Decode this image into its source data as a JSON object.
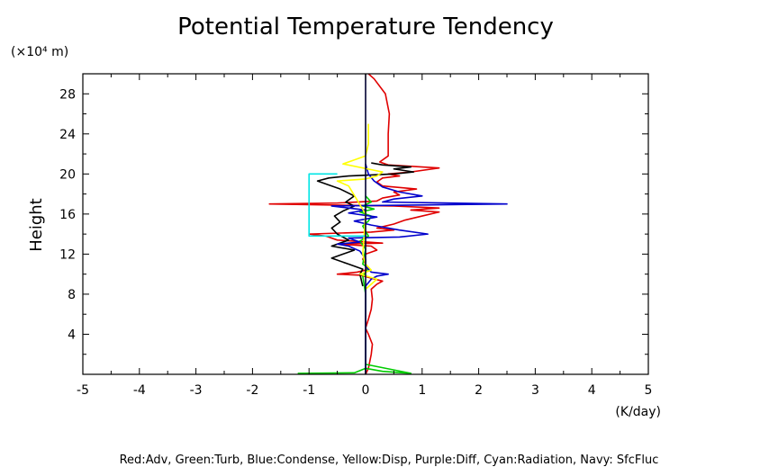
{
  "chart_data": {
    "type": "line",
    "title": "Potential Temperature Tendency",
    "ylabel": "Height",
    "yunit_label": "(×10⁴ m)",
    "xunit_label": "(K/day)",
    "xlim": [
      -5,
      5
    ],
    "ylim": [
      0,
      30
    ],
    "x_ticks": [
      "-5",
      "-4",
      "-3",
      "-2",
      "-1",
      "0",
      "1",
      "2",
      "3",
      "4",
      "5"
    ],
    "y_ticks": [
      "4",
      "8",
      "12",
      "16",
      "20",
      "24",
      "28"
    ],
    "grid": false,
    "legend_note": "Red:Adv, Green:Turb, Blue:Condense, Yellow:Disp, Purple:Diff, Cyan:Radiation, Navy: SfcFluc",
    "series": [
      {
        "name": "Red",
        "color": "#e00000",
        "points": [
          [
            0.0,
            0.0
          ],
          [
            0.05,
            0.6
          ],
          [
            0.1,
            2.0
          ],
          [
            0.12,
            3.0
          ],
          [
            0.05,
            4.0
          ],
          [
            0.0,
            4.6
          ],
          [
            0.05,
            5.5
          ],
          [
            0.1,
            6.5
          ],
          [
            0.12,
            7.5
          ],
          [
            0.1,
            8.5
          ],
          [
            0.2,
            9.0
          ],
          [
            0.3,
            9.3
          ],
          [
            0.1,
            9.6
          ],
          [
            -0.1,
            9.9
          ],
          [
            -0.5,
            10.0
          ],
          [
            -0.15,
            10.2
          ],
          [
            0.0,
            10.4
          ],
          [
            0.05,
            10.7
          ],
          [
            0.0,
            11.0
          ],
          [
            -0.05,
            11.5
          ],
          [
            0.0,
            12.0
          ],
          [
            0.2,
            12.4
          ],
          [
            0.1,
            12.8
          ],
          [
            -0.5,
            13.0
          ],
          [
            0.3,
            13.1
          ],
          [
            -0.5,
            13.4
          ],
          [
            -0.7,
            13.8
          ],
          [
            -1.0,
            14.0
          ],
          [
            0.1,
            14.2
          ],
          [
            0.5,
            14.4
          ],
          [
            0.2,
            14.6
          ],
          [
            0.5,
            15.0
          ],
          [
            0.7,
            15.4
          ],
          [
            1.0,
            15.8
          ],
          [
            1.3,
            16.2
          ],
          [
            0.8,
            16.4
          ],
          [
            1.3,
            16.6
          ],
          [
            0.5,
            16.8
          ],
          [
            -1.7,
            17.0
          ],
          [
            -0.5,
            17.1
          ],
          [
            0.2,
            17.3
          ],
          [
            0.3,
            17.6
          ],
          [
            0.6,
            17.9
          ],
          [
            0.5,
            18.2
          ],
          [
            0.9,
            18.5
          ],
          [
            0.3,
            18.8
          ],
          [
            0.2,
            19.2
          ],
          [
            0.3,
            19.6
          ],
          [
            0.6,
            19.8
          ],
          [
            0.4,
            20.0
          ],
          [
            0.8,
            20.2
          ],
          [
            1.3,
            20.6
          ],
          [
            0.4,
            20.9
          ],
          [
            0.25,
            21.2
          ],
          [
            0.4,
            21.8
          ],
          [
            0.4,
            22.5
          ],
          [
            0.4,
            24.0
          ],
          [
            0.42,
            26.0
          ],
          [
            0.35,
            28.0
          ],
          [
            0.15,
            29.5
          ],
          [
            0.05,
            30.0
          ]
        ]
      },
      {
        "name": "Black",
        "color": "#000000",
        "points": [
          [
            -0.05,
            8.8
          ],
          [
            -0.1,
            10.0
          ],
          [
            -0.05,
            10.5
          ],
          [
            -0.3,
            11.0
          ],
          [
            -0.6,
            11.6
          ],
          [
            -0.4,
            12.0
          ],
          [
            -0.2,
            12.4
          ],
          [
            -0.6,
            12.8
          ],
          [
            -0.3,
            13.4
          ],
          [
            -0.5,
            14.0
          ],
          [
            -0.6,
            14.6
          ],
          [
            -0.45,
            15.2
          ],
          [
            -0.55,
            15.8
          ],
          [
            -0.4,
            16.3
          ],
          [
            -0.2,
            16.8
          ],
          [
            -0.35,
            17.2
          ],
          [
            -0.2,
            17.8
          ],
          [
            -0.45,
            18.5
          ],
          [
            -0.7,
            19.0
          ],
          [
            -0.85,
            19.3
          ],
          [
            -0.65,
            19.6
          ],
          [
            -0.3,
            19.8
          ],
          [
            0.1,
            19.9
          ],
          [
            0.5,
            20.0
          ],
          [
            0.85,
            20.2
          ],
          [
            0.5,
            20.5
          ],
          [
            0.8,
            20.7
          ],
          [
            0.3,
            20.9
          ],
          [
            0.1,
            21.1
          ]
        ]
      },
      {
        "name": "Green",
        "color": "#00cc00",
        "points": [
          [
            -1.2,
            0.1
          ],
          [
            -0.2,
            0.15
          ],
          [
            0.0,
            0.6
          ],
          [
            0.3,
            0.3
          ],
          [
            0.8,
            0.1
          ],
          [
            0.0,
            1.0
          ],
          [
            0.0,
            8.0
          ],
          [
            -0.05,
            9.8
          ],
          [
            0.05,
            10.6
          ],
          [
            -0.05,
            11.0
          ],
          [
            0.0,
            12.5
          ],
          [
            -0.1,
            13.3
          ],
          [
            0.05,
            13.8
          ],
          [
            0.0,
            14.3
          ],
          [
            -0.05,
            14.8
          ],
          [
            0.05,
            15.3
          ],
          [
            0.1,
            15.8
          ],
          [
            -0.1,
            16.2
          ],
          [
            0.15,
            16.5
          ],
          [
            -0.05,
            16.8
          ],
          [
            0.1,
            17.2
          ],
          [
            0.0,
            17.8
          ]
        ]
      },
      {
        "name": "Blue",
        "color": "#0000cc",
        "points": [
          [
            0.0,
            0.0
          ],
          [
            0.0,
            8.8
          ],
          [
            0.1,
            9.5
          ],
          [
            0.2,
            9.8
          ],
          [
            0.4,
            10.0
          ],
          [
            0.1,
            10.2
          ],
          [
            0.0,
            10.8
          ],
          [
            0.0,
            11.5
          ],
          [
            -0.1,
            12.3
          ],
          [
            -0.3,
            12.8
          ],
          [
            -0.5,
            13.0
          ],
          [
            -0.1,
            13.2
          ],
          [
            -0.3,
            13.6
          ],
          [
            0.6,
            13.7
          ],
          [
            1.1,
            14.0
          ],
          [
            0.6,
            14.4
          ],
          [
            0.1,
            14.9
          ],
          [
            -0.2,
            15.3
          ],
          [
            0.2,
            15.7
          ],
          [
            -0.3,
            16.1
          ],
          [
            0.0,
            16.4
          ],
          [
            -0.6,
            16.8
          ],
          [
            2.5,
            17.0
          ],
          [
            0.3,
            17.2
          ],
          [
            0.5,
            17.5
          ],
          [
            1.0,
            17.8
          ],
          [
            0.6,
            18.2
          ],
          [
            0.3,
            18.7
          ],
          [
            0.15,
            19.3
          ],
          [
            0.05,
            20.0
          ],
          [
            0.0,
            21.0
          ]
        ]
      },
      {
        "name": "Yellow",
        "color": "#ffff00",
        "points": [
          [
            0.0,
            8.5
          ],
          [
            0.2,
            9.5
          ],
          [
            -0.1,
            10.0
          ],
          [
            0.1,
            10.4
          ],
          [
            0.0,
            11.0
          ],
          [
            -0.05,
            12.0
          ],
          [
            0.0,
            16.0
          ],
          [
            -0.3,
            18.8
          ],
          [
            -0.5,
            19.3
          ],
          [
            0.0,
            19.5
          ],
          [
            0.2,
            19.8
          ],
          [
            0.3,
            20.2
          ],
          [
            -0.4,
            21.0
          ],
          [
            -0.2,
            21.4
          ],
          [
            0.0,
            21.8
          ],
          [
            0.05,
            23.0
          ],
          [
            0.05,
            25.0
          ]
        ]
      },
      {
        "name": "Cyan",
        "color": "#00e5e5",
        "points": [
          [
            0.0,
            13.8
          ],
          [
            -1.0,
            13.8
          ],
          [
            -1.0,
            20.0
          ],
          [
            -0.5,
            20.0
          ]
        ]
      }
    ]
  }
}
